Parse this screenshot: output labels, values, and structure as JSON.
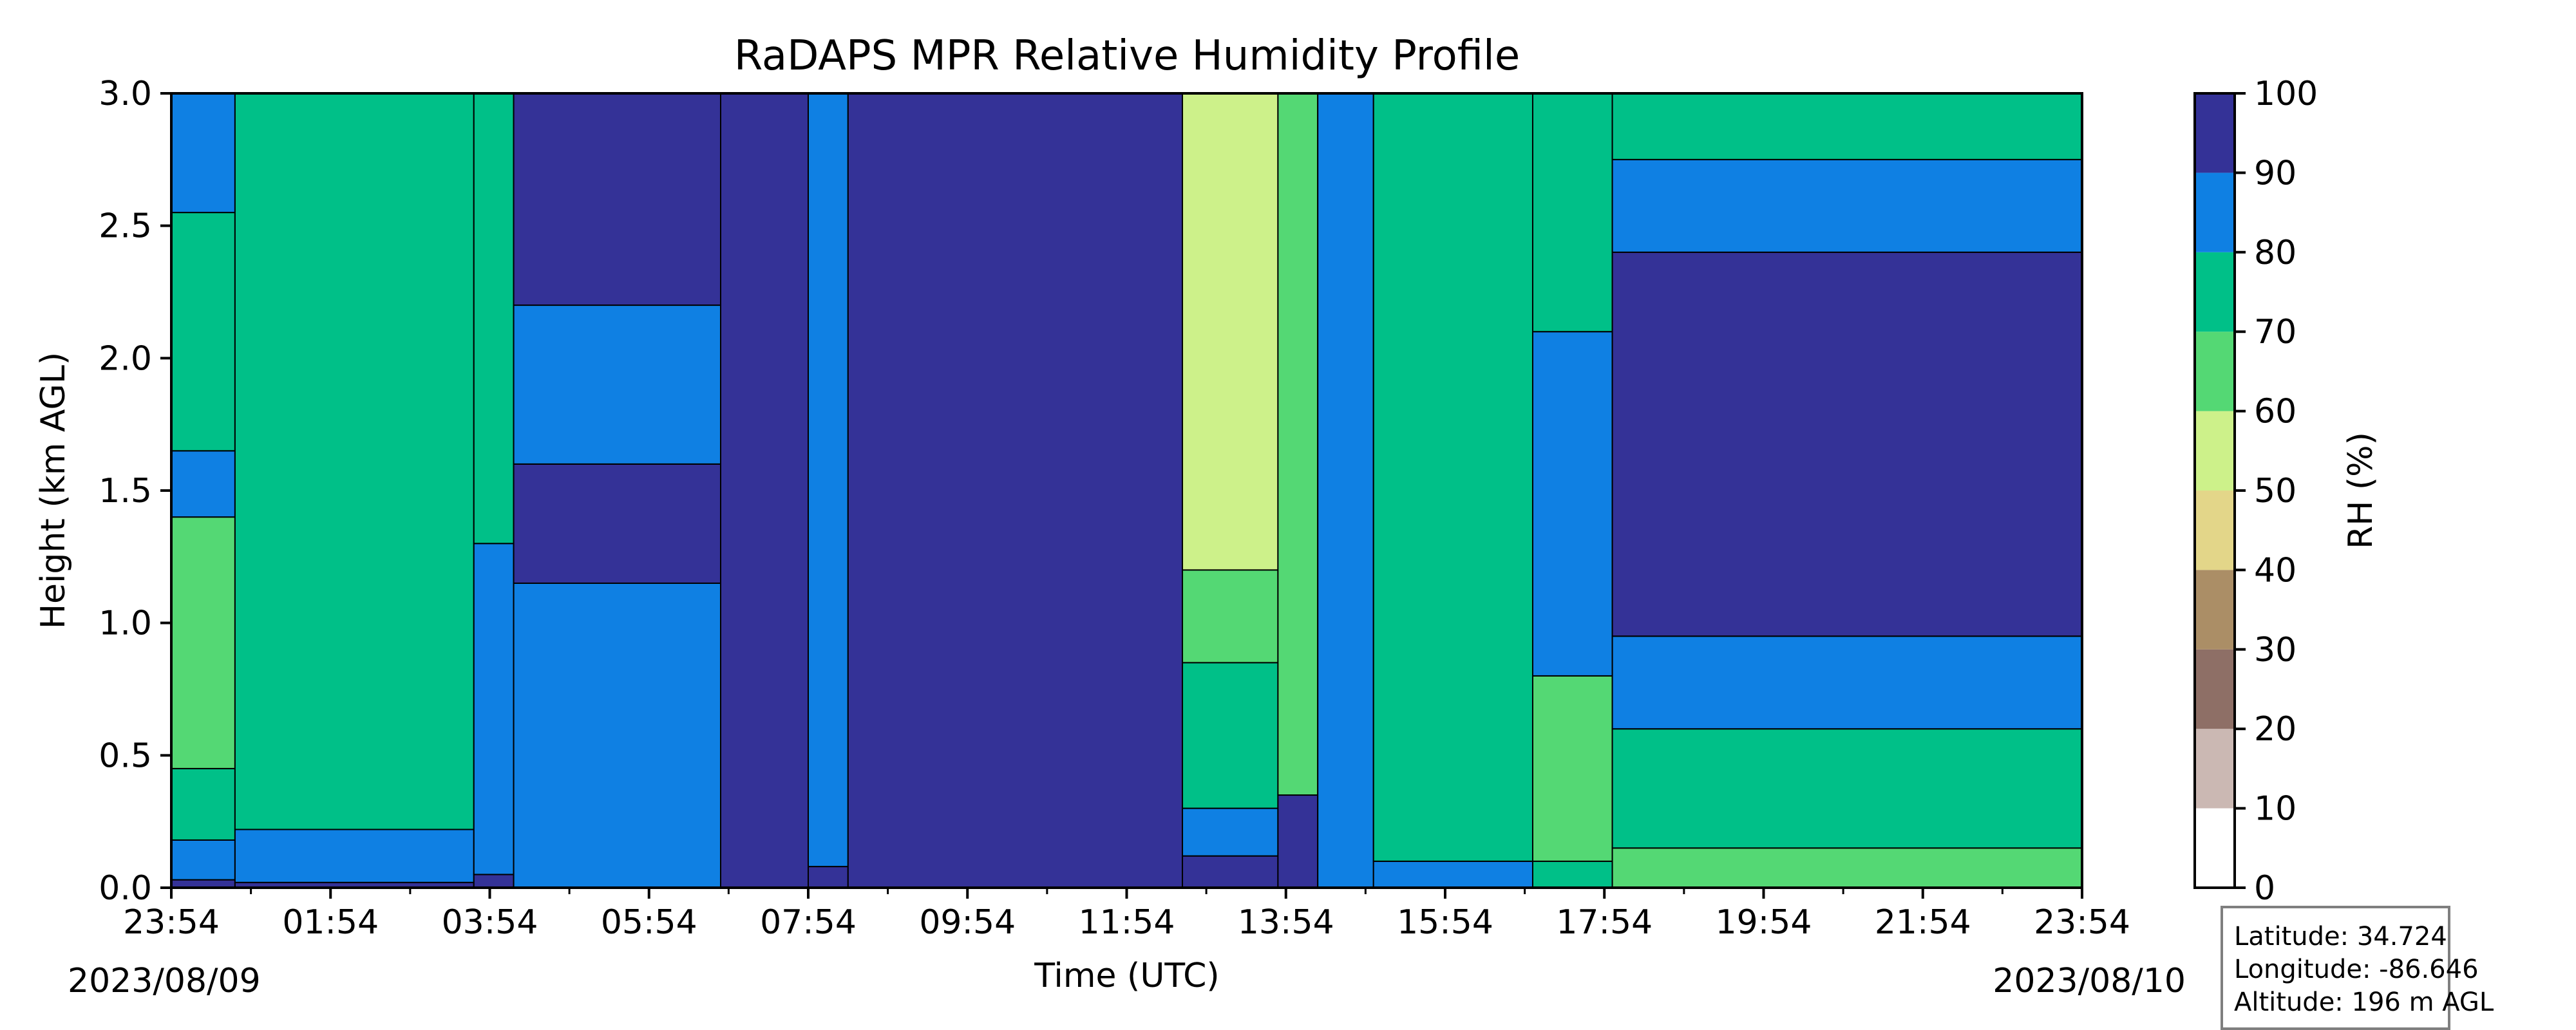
{
  "chart_data": {
    "type": "heatmap",
    "title": "RaDAPS MPR Relative Humidity Profile",
    "xlabel": "Time (UTC)",
    "ylabel": "Height (km AGL)",
    "x_tick_labels": [
      "23:54",
      "01:54",
      "03:54",
      "05:54",
      "07:54",
      "09:54",
      "11:54",
      "13:54",
      "15:54",
      "17:54",
      "19:54",
      "21:54",
      "23:54"
    ],
    "start_date": "2023/08/09",
    "end_date": "2023/08/10",
    "y_ticks": [
      0.0,
      0.5,
      1.0,
      1.5,
      2.0,
      2.5,
      3.0
    ],
    "y_tick_labels": [
      "0.0",
      "0.5",
      "1.0",
      "1.5",
      "2.0",
      "2.5",
      "3.0"
    ],
    "ylim": [
      0.0,
      3.0
    ],
    "xlim_hours": [
      0,
      24
    ],
    "colorbar": {
      "label": "RH (%)",
      "ticks": [
        0,
        10,
        20,
        30,
        40,
        50,
        60,
        70,
        80,
        90,
        100
      ],
      "tick_labels": [
        "0",
        "10",
        "20",
        "30",
        "40",
        "50",
        "60",
        "70",
        "80",
        "90",
        "100"
      ],
      "colors": [
        "#ffffff",
        "#cbb8b3",
        "#8e6f66",
        "#ab8e66",
        "#e3d689",
        "#cdf18a",
        "#54d874",
        "#00c088",
        "#0f80e3",
        "#343297"
      ]
    },
    "time_blocks": [
      {
        "t0": 0.0,
        "t1": 0.8,
        "layers": [
          [
            0.0,
            0.03,
            9
          ],
          [
            0.03,
            0.18,
            8
          ],
          [
            0.18,
            0.45,
            7
          ],
          [
            0.45,
            1.4,
            6
          ],
          [
            1.4,
            1.65,
            8
          ],
          [
            1.65,
            2.55,
            7
          ],
          [
            2.55,
            3.0,
            8
          ]
        ]
      },
      {
        "t0": 0.8,
        "t1": 3.8,
        "layers": [
          [
            0.0,
            0.02,
            9
          ],
          [
            0.02,
            0.22,
            8
          ],
          [
            0.22,
            3.0,
            7
          ]
        ]
      },
      {
        "t0": 3.8,
        "t1": 4.3,
        "layers": [
          [
            0.0,
            0.05,
            9
          ],
          [
            0.05,
            1.3,
            8
          ],
          [
            1.3,
            3.0,
            7
          ]
        ]
      },
      {
        "t0": 4.3,
        "t1": 6.9,
        "layers": [
          [
            0.0,
            1.15,
            8
          ],
          [
            1.15,
            1.6,
            9
          ],
          [
            1.6,
            2.2,
            8
          ],
          [
            2.2,
            3.0,
            9
          ]
        ]
      },
      {
        "t0": 6.9,
        "t1": 8.0,
        "layers": [
          [
            0.0,
            3.0,
            9
          ]
        ]
      },
      {
        "t0": 8.0,
        "t1": 8.5,
        "layers": [
          [
            0.0,
            0.08,
            9
          ],
          [
            0.08,
            3.0,
            8
          ]
        ]
      },
      {
        "t0": 8.5,
        "t1": 12.7,
        "layers": [
          [
            0.0,
            3.0,
            9
          ]
        ]
      },
      {
        "t0": 12.7,
        "t1": 13.9,
        "layers": [
          [
            0.0,
            0.12,
            9
          ],
          [
            0.12,
            0.3,
            8
          ],
          [
            0.3,
            0.85,
            7
          ],
          [
            0.85,
            1.2,
            6
          ],
          [
            1.2,
            3.0,
            5
          ]
        ]
      },
      {
        "t0": 13.9,
        "t1": 14.4,
        "layers": [
          [
            0.0,
            0.35,
            9
          ],
          [
            0.35,
            3.0,
            6
          ]
        ]
      },
      {
        "t0": 14.4,
        "t1": 15.1,
        "layers": [
          [
            0.0,
            3.0,
            8
          ]
        ]
      },
      {
        "t0": 15.1,
        "t1": 17.1,
        "layers": [
          [
            0.0,
            0.1,
            8
          ],
          [
            0.1,
            3.0,
            7
          ]
        ]
      },
      {
        "t0": 17.1,
        "t1": 18.1,
        "layers": [
          [
            0.0,
            0.1,
            7
          ],
          [
            0.1,
            0.8,
            6
          ],
          [
            0.8,
            2.1,
            8
          ],
          [
            2.1,
            3.0,
            7
          ]
        ]
      },
      {
        "t0": 18.1,
        "t1": 24.0,
        "layers": [
          [
            0.0,
            0.15,
            6
          ],
          [
            0.15,
            0.6,
            7
          ],
          [
            0.6,
            0.95,
            8
          ],
          [
            0.95,
            2.4,
            9
          ],
          [
            2.4,
            2.75,
            8
          ],
          [
            2.75,
            3.0,
            7
          ]
        ]
      }
    ],
    "info_box": {
      "latitude": "Latitude: 34.724",
      "longitude": "Longitude: -86.646",
      "altitude": "Altitude: 196 m AGL"
    }
  }
}
